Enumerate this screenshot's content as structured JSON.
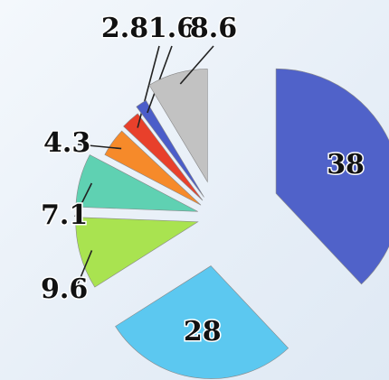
{
  "chart_data": {
    "type": "pie",
    "values": [
      38,
      28,
      9.6,
      7.1,
      4.3,
      2.8,
      1.6,
      8.6
    ],
    "colors": [
      "#5062c9",
      "#5cc8f0",
      "#a9e350",
      "#5fd1b2",
      "#f68a2a",
      "#e8402b",
      "#4b5dc9",
      "#c2c2c2"
    ],
    "start_angle": 0,
    "direction": "clockwise"
  }
}
